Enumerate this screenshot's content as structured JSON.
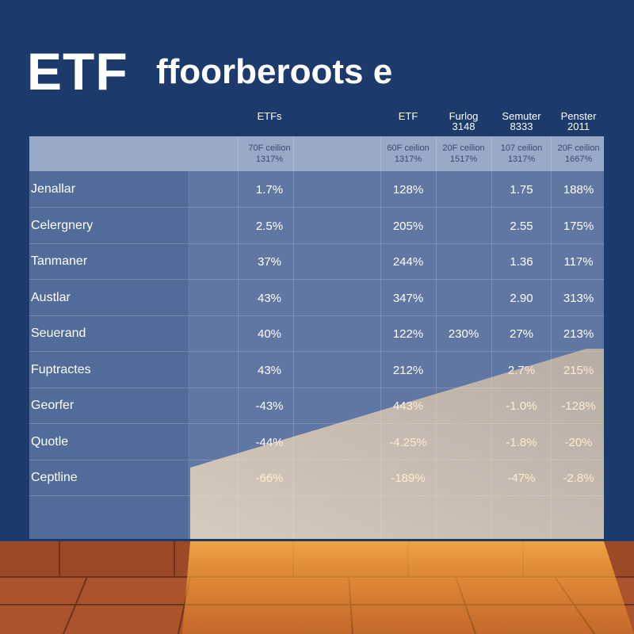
{
  "title": {
    "main": "ETF",
    "secondary": "ffoorberoots e"
  },
  "table": {
    "header": [
      [
        "ETFs"
      ],
      [
        "ETF"
      ],
      [
        "Furlog",
        "3148"
      ],
      [
        "Semuter",
        "8333"
      ],
      [
        "Penster",
        "2011"
      ]
    ],
    "subheader": [
      [
        "70F ceilion",
        "1317%"
      ],
      [
        "60F ceilion",
        "1317%"
      ],
      [
        "20F ceilion",
        "1517%"
      ],
      [
        "107 ceilion",
        "1317%"
      ],
      [
        "20F ceilion",
        "1667%"
      ]
    ],
    "rows": [
      [
        "Jenallar",
        "1.7%",
        "128%",
        null,
        "1.75",
        "188%"
      ],
      [
        "Celergnery",
        "2.5%",
        "205%",
        null,
        "2.55",
        "175%"
      ],
      [
        "Tanmaner",
        "37%",
        "244%",
        null,
        "1.36",
        "117%"
      ],
      [
        "Austlar",
        "43%",
        "347%",
        null,
        "2.90",
        "313%"
      ],
      [
        "Seuerand",
        "40%",
        "122%",
        "230%",
        "27%",
        "213%"
      ],
      [
        "Fuptractes",
        "43%",
        "212%",
        null,
        "2.7%",
        "215%"
      ],
      [
        "Georfer",
        "-43%",
        "443%",
        null,
        "-1.0%",
        "-128%"
      ],
      [
        "Quotle",
        "-44%",
        "-4.25%",
        null,
        "-1.8%",
        "-20%"
      ],
      [
        "Ceptline",
        "-66%",
        "-189%",
        null,
        "-47%",
        "-2.8%"
      ]
    ]
  }
}
